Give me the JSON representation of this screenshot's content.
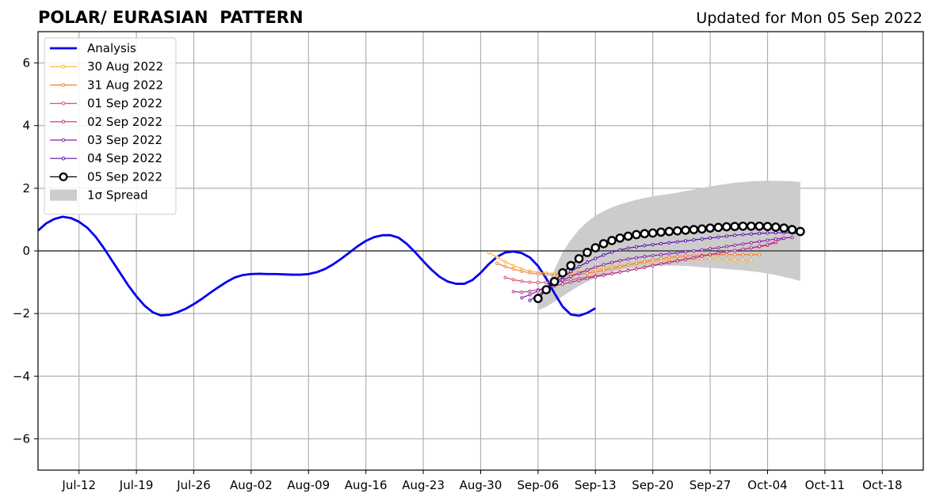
{
  "chart_data": {
    "type": "line",
    "title": "POLAR/ EURASIAN  PATTERN",
    "subtitle": "Updated for Mon 05 Sep 2022",
    "x_axis": {
      "type": "date",
      "range": [
        "2022-07-07",
        "2022-10-23"
      ],
      "ticks": [
        {
          "date": "2022-07-12",
          "label": "Jul-12"
        },
        {
          "date": "2022-07-19",
          "label": "Jul-19"
        },
        {
          "date": "2022-07-26",
          "label": "Jul-26"
        },
        {
          "date": "2022-08-02",
          "label": "Aug-02"
        },
        {
          "date": "2022-08-09",
          "label": "Aug-09"
        },
        {
          "date": "2022-08-16",
          "label": "Aug-16"
        },
        {
          "date": "2022-08-23",
          "label": "Aug-23"
        },
        {
          "date": "2022-08-30",
          "label": "Aug-30"
        },
        {
          "date": "2022-09-06",
          "label": "Sep-06"
        },
        {
          "date": "2022-09-13",
          "label": "Sep-13"
        },
        {
          "date": "2022-09-20",
          "label": "Sep-20"
        },
        {
          "date": "2022-09-27",
          "label": "Sep-27"
        },
        {
          "date": "2022-10-04",
          "label": "Oct-04"
        },
        {
          "date": "2022-10-11",
          "label": "Oct-11"
        },
        {
          "date": "2022-10-18",
          "label": "Oct-18"
        }
      ]
    },
    "y_axis": {
      "range": [
        -7,
        7
      ],
      "ticks": [
        {
          "value": -6,
          "label": "−6"
        },
        {
          "value": -4,
          "label": "−4"
        },
        {
          "value": -2,
          "label": "−2"
        },
        {
          "value": 0,
          "label": "0"
        },
        {
          "value": 2,
          "label": "2"
        },
        {
          "value": 4,
          "label": "4"
        },
        {
          "value": 6,
          "label": "6"
        }
      ]
    },
    "grid": true,
    "legend_position": "top-left",
    "analysis": {
      "name": "Analysis",
      "color": "#0000ee",
      "x_start": "2022-07-07",
      "values": [
        0.65,
        0.88,
        1.02,
        1.09,
        1.05,
        0.93,
        0.74,
        0.46,
        0.1,
        -0.3,
        -0.7,
        -1.1,
        -1.45,
        -1.75,
        -1.96,
        -2.06,
        -2.04,
        -1.96,
        -1.85,
        -1.7,
        -1.53,
        -1.34,
        -1.16,
        -0.99,
        -0.85,
        -0.77,
        -0.74,
        -0.73,
        -0.74,
        -0.74,
        -0.75,
        -0.76,
        -0.76,
        -0.74,
        -0.68,
        -0.58,
        -0.43,
        -0.25,
        -0.05,
        0.15,
        0.32,
        0.44,
        0.5,
        0.5,
        0.42,
        0.22,
        -0.04,
        -0.33,
        -0.6,
        -0.83,
        -0.98,
        -1.05,
        -1.05,
        -0.93,
        -0.7,
        -0.42,
        -0.19,
        -0.05,
        -0.02,
        -0.07,
        -0.21,
        -0.48,
        -0.88,
        -1.35,
        -1.78,
        -2.03,
        -2.07,
        -1.98,
        -1.83
      ]
    },
    "forecasts": [
      {
        "name": "30 Aug 2022",
        "color": "#f9b233",
        "x_start": "2022-08-31",
        "values": [
          -0.06,
          -0.2,
          -0.35,
          -0.47,
          -0.57,
          -0.64,
          -0.69,
          -0.71,
          -0.72,
          -0.71,
          -0.69,
          -0.66,
          -0.63,
          -0.59,
          -0.55,
          -0.51,
          -0.47,
          -0.44,
          -0.41,
          -0.38,
          -0.35,
          -0.33,
          -0.31,
          -0.29,
          -0.28,
          -0.27,
          -0.26,
          -0.26,
          -0.26,
          -0.27,
          -0.28,
          -0.29,
          -0.3
        ]
      },
      {
        "name": "31 Aug 2022",
        "color": "#f07f3c",
        "x_start": "2022-09-01",
        "values": [
          -0.4,
          -0.5,
          -0.58,
          -0.65,
          -0.7,
          -0.74,
          -0.76,
          -0.77,
          -0.77,
          -0.76,
          -0.74,
          -0.71,
          -0.67,
          -0.62,
          -0.57,
          -0.51,
          -0.45,
          -0.39,
          -0.34,
          -0.29,
          -0.25,
          -0.21,
          -0.18,
          -0.16,
          -0.14,
          -0.13,
          -0.12,
          -0.12,
          -0.12,
          -0.12,
          -0.12,
          -0.12,
          -0.12
        ]
      },
      {
        "name": "01 Sep 2022",
        "color": "#d9506c",
        "x_start": "2022-09-02",
        "values": [
          -0.85,
          -0.92,
          -0.97,
          -1.0,
          -1.01,
          -1.01,
          -0.99,
          -0.96,
          -0.92,
          -0.88,
          -0.84,
          -0.8,
          -0.76,
          -0.72,
          -0.67,
          -0.62,
          -0.57,
          -0.52,
          -0.46,
          -0.41,
          -0.36,
          -0.31,
          -0.26,
          -0.21,
          -0.16,
          -0.12,
          -0.07,
          -0.03,
          0.01,
          0.05,
          0.09,
          0.13,
          0.18,
          0.26
        ]
      },
      {
        "name": "02 Sep 2022",
        "color": "#b2308e",
        "x_start": "2022-09-03",
        "values": [
          -1.3,
          -1.32,
          -1.29,
          -1.24,
          -1.18,
          -1.12,
          -1.06,
          -1.0,
          -0.94,
          -0.88,
          -0.83,
          -0.78,
          -0.73,
          -0.68,
          -0.63,
          -0.58,
          -0.53,
          -0.47,
          -0.42,
          -0.37,
          -0.32,
          -0.27,
          -0.22,
          -0.17,
          -0.12,
          -0.07,
          -0.03,
          0.01,
          0.05,
          0.1,
          0.15,
          0.2,
          0.3,
          0.4
        ]
      },
      {
        "name": "03 Sep 2022",
        "color": "#8a1fa3",
        "x_start": "2022-09-04",
        "values": [
          -1.5,
          -1.4,
          -1.28,
          -1.16,
          -1.05,
          -0.93,
          -0.82,
          -0.71,
          -0.61,
          -0.52,
          -0.44,
          -0.37,
          -0.31,
          -0.26,
          -0.22,
          -0.18,
          -0.15,
          -0.12,
          -0.09,
          -0.06,
          -0.03,
          0.0,
          0.03,
          0.07,
          0.1,
          0.14,
          0.18,
          0.22,
          0.26,
          0.3,
          0.34,
          0.38,
          0.41,
          0.43
        ]
      },
      {
        "name": "04 Sep 2022",
        "color": "#5510a8",
        "x_start": "2022-09-05",
        "values": [
          -1.58,
          -1.41,
          -1.22,
          -1.03,
          -0.84,
          -0.66,
          -0.5,
          -0.36,
          -0.24,
          -0.13,
          -0.04,
          0.03,
          0.09,
          0.13,
          0.17,
          0.2,
          0.23,
          0.26,
          0.29,
          0.32,
          0.35,
          0.38,
          0.41,
          0.44,
          0.47,
          0.5,
          0.52,
          0.54,
          0.56,
          0.57,
          0.58,
          0.58,
          0.57,
          0.53
        ]
      },
      {
        "name": "05 Sep 2022",
        "color": "#000000",
        "x_start": "2022-09-06",
        "values": [
          -1.52,
          -1.24,
          -0.98,
          -0.7,
          -0.47,
          -0.25,
          -0.05,
          0.1,
          0.23,
          0.33,
          0.41,
          0.47,
          0.52,
          0.55,
          0.57,
          0.6,
          0.62,
          0.64,
          0.66,
          0.68,
          0.7,
          0.73,
          0.75,
          0.77,
          0.78,
          0.79,
          0.79,
          0.79,
          0.78,
          0.76,
          0.73,
          0.68,
          0.62
        ]
      }
    ],
    "spread": {
      "name": "1σ Spread",
      "color": "#cccccc",
      "x_start": "2022-09-06",
      "upper": [
        -1.5,
        -1.15,
        -0.6,
        -0.05,
        0.35,
        0.68,
        0.93,
        1.12,
        1.27,
        1.39,
        1.48,
        1.56,
        1.63,
        1.69,
        1.74,
        1.78,
        1.82,
        1.86,
        1.91,
        1.96,
        2.01,
        2.06,
        2.1,
        2.14,
        2.18,
        2.2,
        2.22,
        2.23,
        2.24,
        2.24,
        2.23,
        2.22,
        2.2
      ],
      "lower": [
        -1.9,
        -1.78,
        -1.62,
        -1.45,
        -1.28,
        -1.12,
        -0.98,
        -0.86,
        -0.76,
        -0.68,
        -0.62,
        -0.57,
        -0.53,
        -0.5,
        -0.48,
        -0.47,
        -0.47,
        -0.47,
        -0.48,
        -0.5,
        -0.52,
        -0.54,
        -0.56,
        -0.58,
        -0.6,
        -0.62,
        -0.65,
        -0.68,
        -0.72,
        -0.77,
        -0.83,
        -0.89,
        -0.96
      ]
    },
    "legend_labels": [
      "Analysis",
      "30 Aug 2022",
      "31 Aug 2022",
      "01 Sep 2022",
      "02 Sep 2022",
      "03 Sep 2022",
      "04 Sep 2022",
      "05 Sep 2022",
      "1σ Spread"
    ]
  }
}
